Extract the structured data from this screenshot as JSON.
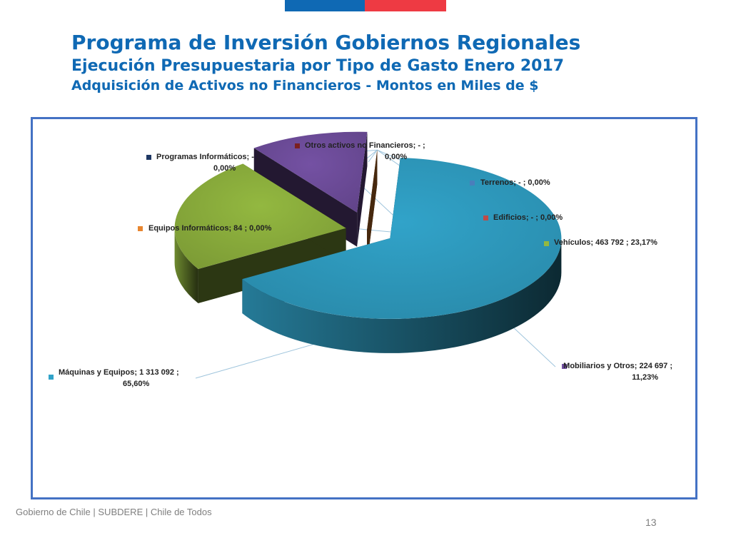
{
  "header": {
    "title": "Programa de Inversión Gobiernos Regionales",
    "subtitle": "Ejecución Presupuestaria por Tipo de Gasto Enero 2017",
    "subtitle2": "Adquisición de Activos no Financieros - Montos en Miles de $"
  },
  "colors": {
    "title": "#0f69b4",
    "flag_blue": "#0f69b4",
    "flag_red": "#ee3a43",
    "frame": "#4472c4"
  },
  "chart_data": {
    "type": "pie",
    "style": "3d-exploded",
    "legend": "none",
    "slices": [
      {
        "name": "Máquinas y Equipos",
        "value": 1313092,
        "percent": 65.6,
        "label": [
          "Máquinas y Equipos;  1 313 092 ;",
          "65,60%"
        ],
        "color": "#31a3c9"
      },
      {
        "name": "Vehículos",
        "value": 463792,
        "percent": 23.17,
        "label": [
          "Vehículos;  463 792 ; 23,17%"
        ],
        "color": "#93b840"
      },
      {
        "name": "Mobiliarios y Otros",
        "value": 224697,
        "percent": 11.23,
        "label": [
          "Mobiliarios y Otros;  224 697 ;",
          "11,23%"
        ],
        "color": "#7451a3"
      },
      {
        "name": "Equipos Informáticos",
        "value": 84,
        "percent": 0.0,
        "label": [
          "Equipos Informáticos;  84 ; 0,00%"
        ],
        "color": "#e88630"
      },
      {
        "name": "Programas Informáticos",
        "value": 0,
        "percent": 0.0,
        "label": [
          "Programas Informáticos;  -   ;",
          "0,00%"
        ],
        "color": "#1f3864"
      },
      {
        "name": "Otros activos no Financieros",
        "value": 0,
        "percent": 0.0,
        "label": [
          "Otros activos no Financieros;  -   ;",
          "0,00%"
        ],
        "color": "#7b2020"
      },
      {
        "name": "Terrenos",
        "value": 0,
        "percent": 0.0,
        "label": [
          "Terrenos;  -   ; 0,00%"
        ],
        "color": "#4a7ebb"
      },
      {
        "name": "Edificios",
        "value": 0,
        "percent": 0.0,
        "label": [
          "Edificios;  -   ; 0,00%"
        ],
        "color": "#be4b48"
      }
    ]
  },
  "footer": {
    "text": "Gobierno de Chile | SUBDERE | Chile de Todos",
    "page_number": "13"
  }
}
